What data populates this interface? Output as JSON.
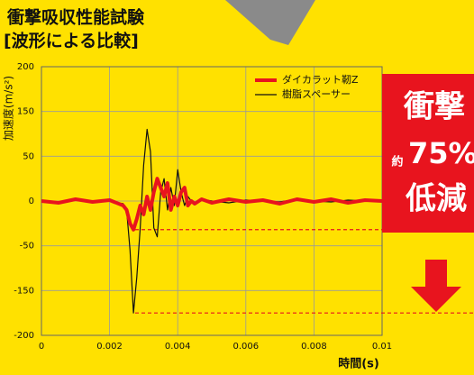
{
  "chart_data": {
    "type": "line",
    "title": "衝撃吸収性能試験",
    "subtitle": "[波形による比較]",
    "y_label": "加速度(m/s²)",
    "x_label": "時間(s)",
    "x": [
      0,
      0.0005,
      0.001,
      0.0015,
      0.002,
      0.0024,
      0.0025,
      0.0026,
      0.0027,
      0.0028,
      0.0029,
      0.003,
      0.0031,
      0.0032,
      0.0033,
      0.0034,
      0.0035,
      0.0036,
      0.0037,
      0.0038,
      0.0039,
      0.004,
      0.0041,
      0.0042,
      0.0043,
      0.0044,
      0.0045,
      0.0047,
      0.005,
      0.0055,
      0.006,
      0.0065,
      0.007,
      0.0075,
      0.008,
      0.0085,
      0.009,
      0.0095,
      0.01
    ],
    "series": [
      {
        "name": "ダイカラット靭Z",
        "color": "#e8141e",
        "width": 4,
        "values": [
          0,
          -2,
          2,
          -1,
          1,
          -5,
          -10,
          -25,
          -32,
          -20,
          -5,
          -15,
          5,
          -10,
          10,
          25,
          15,
          5,
          20,
          -10,
          5,
          -5,
          10,
          15,
          -5,
          0,
          -3,
          2,
          -2,
          2,
          -1,
          1,
          -3,
          2,
          -1,
          2,
          -2,
          1,
          0
        ]
      },
      {
        "name": "樹脂スペーサー",
        "color": "#111111",
        "width": 1.2,
        "values": [
          0,
          -1,
          1,
          -2,
          0,
          -3,
          -10,
          -60,
          -175,
          -120,
          -30,
          40,
          110,
          60,
          -30,
          -40,
          10,
          25,
          -10,
          15,
          -5,
          35,
          10,
          -5,
          5,
          0,
          -3,
          2,
          0,
          -2,
          1,
          0,
          -1,
          2,
          0,
          -1,
          1,
          0,
          0
        ]
      }
    ],
    "xlim": [
      0,
      0.01
    ],
    "xticks": [
      0,
      0.002,
      0.004,
      0.006,
      0.008,
      0.01
    ],
    "ylim": [
      -200,
      200
    ],
    "yticks": [
      200,
      150,
      50,
      0,
      -50,
      -150,
      -200
    ],
    "grid": true,
    "legend": "upper right",
    "reference_lines": {
      "color": "#e8141e",
      "values": [
        -32,
        -175
      ]
    },
    "callout": {
      "lines": [
        "衝撃",
        "約",
        "75%",
        "低減"
      ],
      "color": "#e8141e"
    }
  }
}
